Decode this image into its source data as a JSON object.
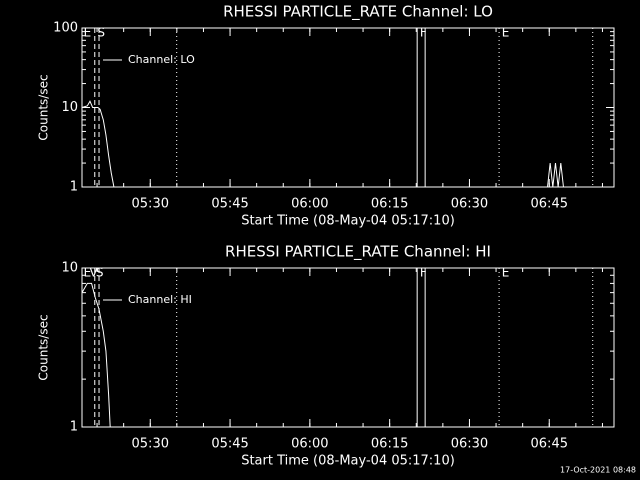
{
  "chart_data": [
    {
      "type": "line",
      "title": "RHESSI PARTICLE_RATE Channel: LO",
      "xlabel": "Start Time (08-May-04 05:17:10)",
      "ylabel": "Counts/sec",
      "log_y": true,
      "xlim": [
        0,
        100
      ],
      "ylim": [
        1,
        100
      ],
      "yticks": [
        1,
        10,
        100
      ],
      "xticks": [
        {
          "value": 12.83,
          "label": "05:30"
        },
        {
          "value": 27.83,
          "label": "05:45"
        },
        {
          "value": 42.83,
          "label": "06:00"
        },
        {
          "value": 57.83,
          "label": "06:15"
        },
        {
          "value": 72.83,
          "label": "06:30"
        },
        {
          "value": 87.83,
          "label": "06:45"
        }
      ],
      "series": [
        {
          "name": "Channel: LO",
          "color": "#ffffff",
          "x": [
            0,
            1,
            1.5,
            2,
            3,
            3.4,
            4,
            4.5,
            5,
            5.5,
            6,
            7,
            87.5,
            88,
            88.5,
            89,
            89.5,
            90,
            90.5
          ],
          "values": [
            10,
            10.5,
            12,
            10,
            10,
            9.5,
            7,
            4.5,
            2.5,
            1.5,
            1,
            null,
            1,
            2,
            1,
            2,
            1,
            2,
            1
          ]
        }
      ],
      "markers": [
        {
          "x": 2.4,
          "style": "dashed"
        },
        {
          "x": 3.2,
          "style": "dashed"
        },
        {
          "x": 17.8,
          "style": "dotted"
        },
        {
          "x": 63.0,
          "style": "solid"
        },
        {
          "x": 64.5,
          "style": "solid"
        },
        {
          "x": 78.4,
          "style": "dotted"
        },
        {
          "x": 96.0,
          "style": "dotted"
        }
      ],
      "flags": [
        {
          "x": 0.3,
          "label": "E"
        },
        {
          "x": 2.9,
          "label": "S"
        },
        {
          "x": 63.5,
          "label": "F"
        },
        {
          "x": 78.9,
          "label": "E"
        }
      ]
    },
    {
      "type": "line",
      "title": "RHESSI PARTICLE_RATE Channel: HI",
      "xlabel": "Start Time (08-May-04 05:17:10)",
      "ylabel": "Counts/sec",
      "log_y": true,
      "xlim": [
        0,
        100
      ],
      "ylim": [
        1,
        10
      ],
      "yticks": [
        1,
        10
      ],
      "xticks": [
        {
          "value": 12.83,
          "label": "05:30"
        },
        {
          "value": 27.83,
          "label": "05:45"
        },
        {
          "value": 42.83,
          "label": "06:00"
        },
        {
          "value": 57.83,
          "label": "06:15"
        },
        {
          "value": 72.83,
          "label": "06:30"
        },
        {
          "value": 87.83,
          "label": "06:45"
        }
      ],
      "series": [
        {
          "name": "Channel: HI",
          "color": "#ffffff",
          "x": [
            0,
            1,
            1.8,
            2.5,
            3.2,
            4,
            4.5,
            5,
            5.3
          ],
          "values": [
            7,
            8,
            8,
            6.5,
            5.5,
            4,
            3,
            1.6,
            1
          ]
        }
      ],
      "markers": [
        {
          "x": 2.4,
          "style": "dashed"
        },
        {
          "x": 3.2,
          "style": "dashed"
        },
        {
          "x": 17.8,
          "style": "dotted"
        },
        {
          "x": 63.0,
          "style": "solid"
        },
        {
          "x": 64.5,
          "style": "solid"
        },
        {
          "x": 78.4,
          "style": "dotted"
        },
        {
          "x": 96.0,
          "style": "dotted"
        }
      ],
      "flags": [
        {
          "x": 0.3,
          "label": "E"
        },
        {
          "x": 1.4,
          "label": "V"
        },
        {
          "x": 2.6,
          "label": "S"
        },
        {
          "x": 63.5,
          "label": "F"
        },
        {
          "x": 78.9,
          "label": "E"
        }
      ]
    }
  ],
  "footer": "17-Oct-2021 08:48"
}
